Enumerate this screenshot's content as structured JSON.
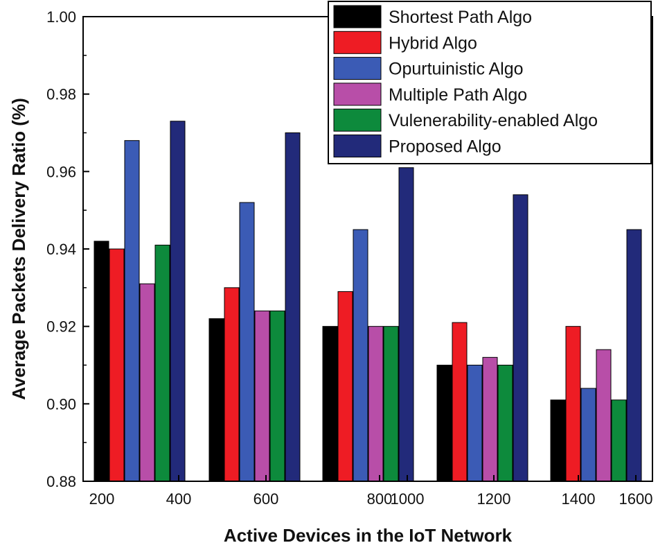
{
  "chart_data": {
    "type": "bar",
    "title": "",
    "xlabel": "Active Devices in the IoT Network",
    "ylabel": "Average Packets Delivery Ratio (%)",
    "ylim": [
      0.88,
      1.0
    ],
    "y_ticks": [
      "0.88",
      "0.90",
      "0.92",
      "0.94",
      "0.96",
      "0.98",
      "1.00"
    ],
    "x_ticks": [
      "200",
      "400",
      "600",
      "800",
      "1000",
      "1200",
      "1400",
      "1600"
    ],
    "categories": [
      "200–400",
      "600",
      "800–1000",
      "1200",
      "1400–1600"
    ],
    "legend_position": "top-right",
    "series": [
      {
        "name": "Shortest Path Algo",
        "color": "#000000",
        "values": [
          0.942,
          0.922,
          0.92,
          0.91,
          0.901
        ]
      },
      {
        "name": "Hybrid Algo",
        "color": "#ee1c24",
        "values": [
          0.94,
          0.93,
          0.929,
          0.921,
          0.92
        ]
      },
      {
        "name": "Opurtuinistic Algo",
        "color": "#3b5bb5",
        "values": [
          0.968,
          0.952,
          0.945,
          0.91,
          0.904
        ]
      },
      {
        "name": "Multiple Path Algo",
        "color": "#b84ea8",
        "values": [
          0.931,
          0.924,
          0.92,
          0.912,
          0.914
        ]
      },
      {
        "name": "Vulenerability-enabled Algo",
        "color": "#0d8a3c",
        "values": [
          0.941,
          0.924,
          0.92,
          0.91,
          0.901
        ]
      },
      {
        "name": "Proposed Algo",
        "color": "#222a7a",
        "values": [
          0.973,
          0.97,
          0.961,
          0.954,
          0.945
        ]
      }
    ]
  }
}
